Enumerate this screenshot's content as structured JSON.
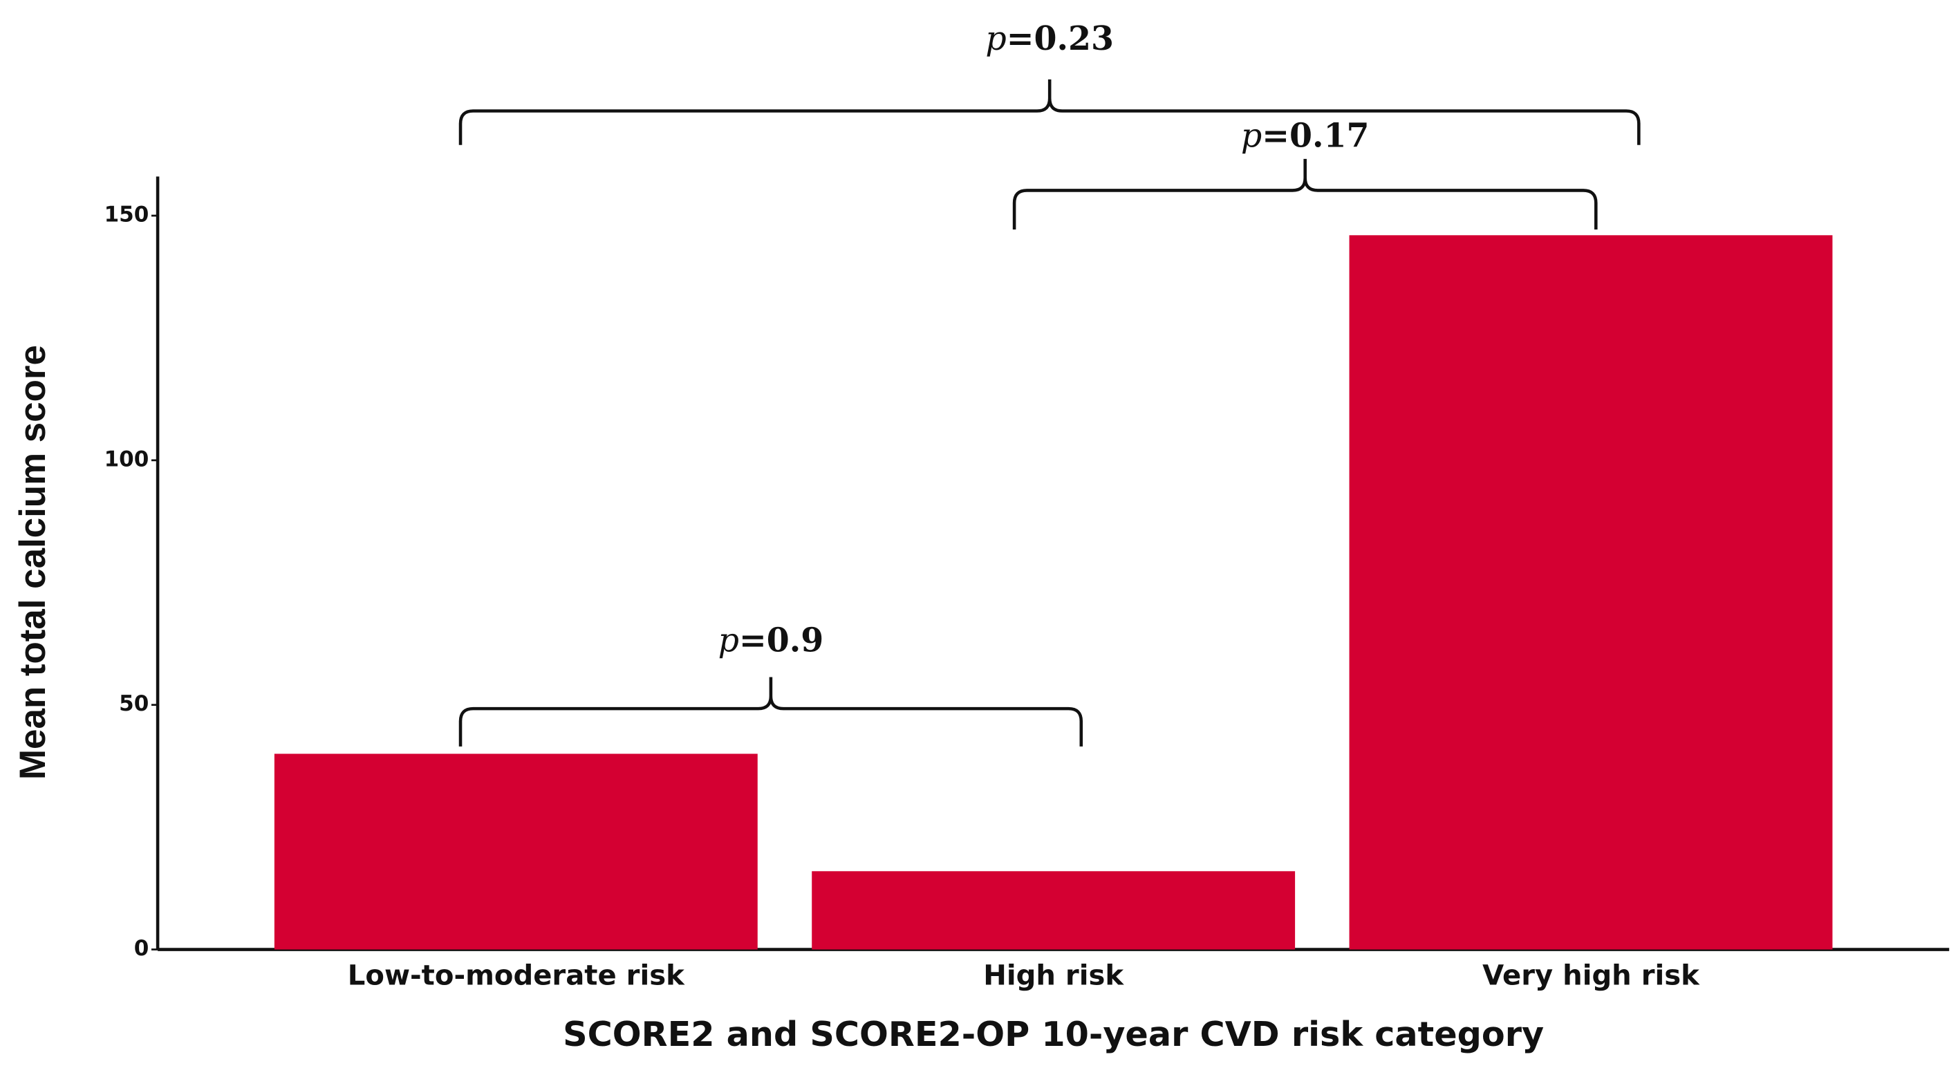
{
  "chart_data": {
    "type": "bar",
    "categories": [
      "Low-to-moderate risk",
      "High risk",
      "Very high risk"
    ],
    "values": [
      40,
      16,
      146
    ],
    "color": "#d40032",
    "ylim": [
      0,
      158
    ],
    "yticks": [
      0,
      50,
      100,
      150
    ],
    "x_label": "SCORE2 and SCORE2-OP 10-year CVD risk category",
    "y_label": "Mean total calcium score",
    "annotations": [
      "p=0.23",
      "p=0.17",
      "p=0.9"
    ]
  }
}
